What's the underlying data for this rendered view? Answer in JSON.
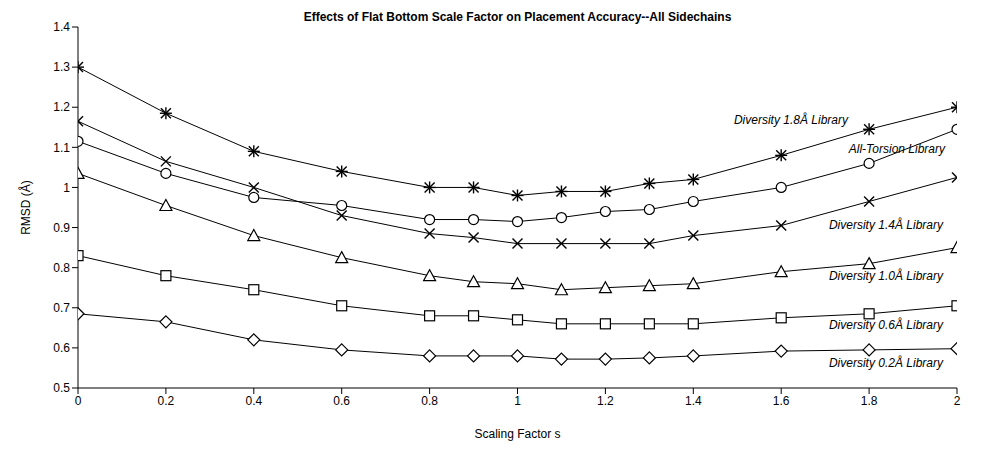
{
  "chart_data": {
    "type": "line",
    "title": "Effects of Flat Bottom Scale Factor on Placement Accuracy--All Sidechains",
    "x_label": "Scaling Factor s",
    "y_label": "RMSD (Å)",
    "x": [
      0,
      0.2,
      0.4,
      0.6,
      0.8,
      0.9,
      1,
      1.1,
      1.2,
      1.3,
      1.4,
      1.6,
      1.8,
      2
    ],
    "xlim": [
      0,
      2
    ],
    "xticks": [
      0,
      0.2,
      0.4,
      0.6,
      0.8,
      1,
      1.2,
      1.4,
      1.6,
      1.8,
      2
    ],
    "ylim": [
      0.5,
      1.4
    ],
    "yticks": [
      0.5,
      0.6,
      0.7,
      0.8,
      0.9,
      1,
      1.1,
      1.2,
      1.3,
      1.4
    ],
    "grid": false,
    "series": [
      {
        "name": "Diversity 1.8Å Library",
        "color": "#000000",
        "marker": "asterisk",
        "values": [
          1.3,
          1.185,
          1.09,
          1.04,
          1.0,
          1.0,
          0.98,
          0.99,
          0.99,
          1.01,
          1.02,
          1.08,
          1.145,
          1.2
        ]
      },
      {
        "name": "All-Torsion Library",
        "color": "#000000",
        "marker": "circle",
        "values": [
          1.115,
          1.035,
          0.975,
          0.955,
          0.92,
          0.92,
          0.915,
          0.925,
          0.94,
          0.945,
          0.965,
          1.0,
          1.06,
          1.145
        ]
      },
      {
        "name": "Diversity 1.4Å Library",
        "color": "#000000",
        "marker": "x",
        "values": [
          1.165,
          1.065,
          1.0,
          0.93,
          0.885,
          0.875,
          0.86,
          0.86,
          0.86,
          0.86,
          0.88,
          0.905,
          0.965,
          1.025
        ]
      },
      {
        "name": "Diversity 1.0Å Library",
        "color": "#000000",
        "marker": "triangle",
        "values": [
          1.035,
          0.955,
          0.88,
          0.825,
          0.78,
          0.765,
          0.76,
          0.745,
          0.75,
          0.755,
          0.76,
          0.79,
          0.81,
          0.85
        ]
      },
      {
        "name": "Diversity 0.6Å Library",
        "color": "#000000",
        "marker": "square",
        "values": [
          0.83,
          0.78,
          0.745,
          0.705,
          0.68,
          0.68,
          0.67,
          0.66,
          0.66,
          0.66,
          0.66,
          0.675,
          0.685,
          0.705
        ]
      },
      {
        "name": "Diversity 0.2Å Library",
        "color": "#000000",
        "marker": "diamond",
        "values": [
          0.685,
          0.665,
          0.62,
          0.595,
          0.58,
          0.58,
          0.58,
          0.572,
          0.572,
          0.575,
          0.58,
          0.592,
          0.595,
          0.598
        ]
      }
    ]
  }
}
